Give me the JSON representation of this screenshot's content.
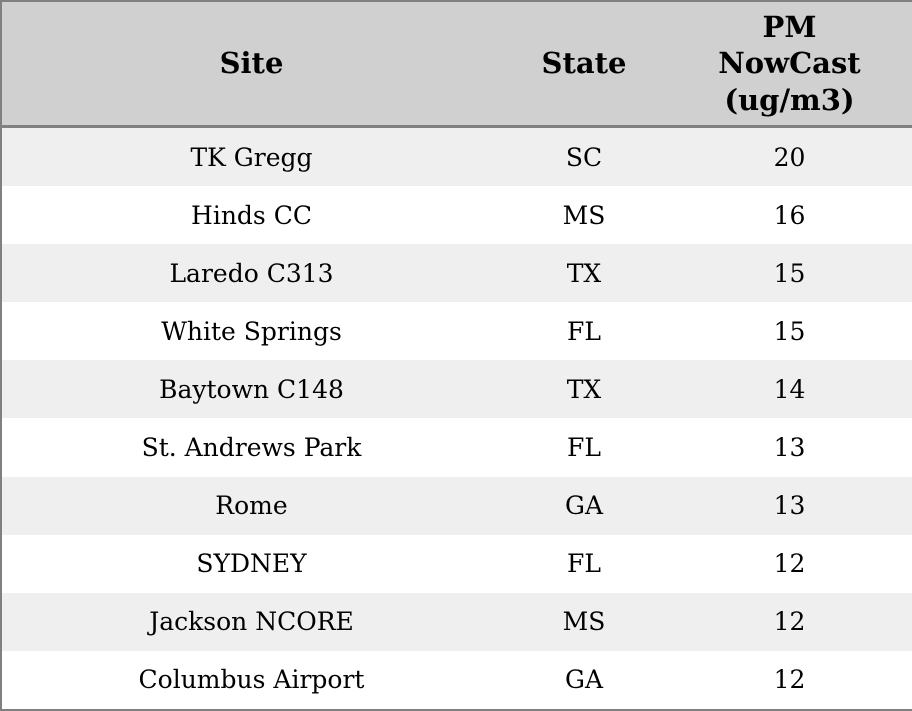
{
  "chart_data": {
    "type": "table",
    "columns": [
      "Site",
      "State",
      "PM NowCast (ug/m3)"
    ],
    "rows": [
      [
        "TK Gregg",
        "SC",
        20
      ],
      [
        "Hinds CC",
        "MS",
        16
      ],
      [
        "Laredo C313",
        "TX",
        15
      ],
      [
        "White Springs",
        "FL",
        15
      ],
      [
        "Baytown C148",
        "TX",
        14
      ],
      [
        "St. Andrews Park",
        "FL",
        13
      ],
      [
        "Rome",
        "GA",
        13
      ],
      [
        "SYDNEY",
        "FL",
        12
      ],
      [
        "Jackson NCORE",
        "MS",
        12
      ],
      [
        "Columbus Airport",
        "GA",
        12
      ]
    ],
    "title": "",
    "layout": {
      "striped": true,
      "alignment": "center",
      "header_rows": 1
    }
  },
  "table": {
    "headers": [
      {
        "label": "Site"
      },
      {
        "label": "State"
      },
      {
        "label": "PM\nNowCast\n(ug/m3)"
      }
    ]
  },
  "colors": {
    "header_bg": "#d0d0d0",
    "row_alt_bg": "#efefef",
    "row_bg": "#ffffff",
    "border": "#808080",
    "text": "#000000"
  }
}
